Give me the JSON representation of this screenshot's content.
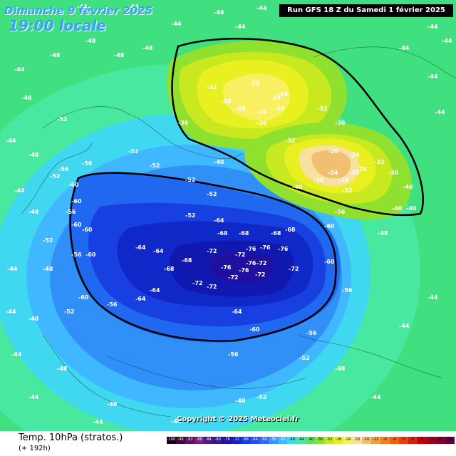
{
  "header": {
    "date": "Dimanche 9 février 2025",
    "time": "19:00 locale",
    "run": "Run GFS 18 Z du Samedi 1 février 2025"
  },
  "copyright": "Copyright © 2025 Meteociel.fr",
  "footer": {
    "title": "Temp. 10hPa (stratos.)",
    "subtitle": "(+ 192h)"
  },
  "scale": {
    "values": [
      "-100",
      "-96",
      "-92",
      "-88",
      "-84",
      "-80",
      "-76",
      "-72",
      "-68",
      "-64",
      "-60",
      "-56",
      "-52",
      "-48",
      "-44",
      "-40",
      "-36",
      "-32",
      "-28",
      "-24",
      "-20",
      "-16",
      "-12",
      "-8",
      "-4",
      "0",
      "4",
      "8",
      "12",
      "16",
      "20"
    ],
    "colors": [
      "#1a001a",
      "#3b0a3b",
      "#5a1460",
      "#78207f",
      "#4a1880",
      "#301890",
      "#2010a8",
      "#1020c8",
      "#1838e0",
      "#2050f0",
      "#3068f8",
      "#4090ff",
      "#40b8ff",
      "#40d8f0",
      "#48e8a0",
      "#60e060",
      "#90e030",
      "#c8e820",
      "#e8f020",
      "#f8f060",
      "#f8e0a0",
      "#f0c070",
      "#f0a040",
      "#f08020",
      "#f06010",
      "#e84010",
      "#d82010",
      "#c00010",
      "#a00020",
      "#800030",
      "#600040"
    ]
  },
  "map_labels": {
    "outer": [
      "-44",
      "-44",
      "-44",
      "-44",
      "-44",
      "-44",
      "-44",
      "-44",
      "-44",
      "-44",
      "-44",
      "-44",
      "-44",
      "-44",
      "-44",
      "-44",
      "-44",
      "-44",
      "-44",
      "-44",
      "-44",
      "-44",
      "-44",
      "-44"
    ],
    "ring48": [
      "-48",
      "-48",
      "-48",
      "-48",
      "-48",
      "-48",
      "-48",
      "-48",
      "-48",
      "-48",
      "-48",
      "-48",
      "-48",
      "-48"
    ],
    "ring52": [
      "-52",
      "-52",
      "-52",
      "-52",
      "-52",
      "-52",
      "-52",
      "-52",
      "-52",
      "-52",
      "-52"
    ],
    "ring56": [
      "-56",
      "-56",
      "-56",
      "-56",
      "-56",
      "-56",
      "-56",
      "-56",
      "-56"
    ],
    "ring60": [
      "-60",
      "-60",
      "-60",
      "-60",
      "-60",
      "-60",
      "-60",
      "-60",
      "-60"
    ],
    "vortex": [
      "-64",
      "-64",
      "-64",
      "-64",
      "-64",
      "-64",
      "-68",
      "-68",
      "-68",
      "-68",
      "-68",
      "-68",
      "-72",
      "-72",
      "-72",
      "-72",
      "-72",
      "-72",
      "-72",
      "-72",
      "-76",
      "-76",
      "-76",
      "-76",
      "-76",
      "-76"
    ],
    "warm1": [
      "-40",
      "-36",
      "-36",
      "-32",
      "-32",
      "-28",
      "-28",
      "-24",
      "-24",
      "-24",
      "-24",
      "-28",
      "-32",
      "-36"
    ],
    "warm2": [
      "-40",
      "-36",
      "-32",
      "-28",
      "-24",
      "-20",
      "-20",
      "-24",
      "-28",
      "-32",
      "-36",
      "-40",
      "-40",
      "-40"
    ]
  }
}
